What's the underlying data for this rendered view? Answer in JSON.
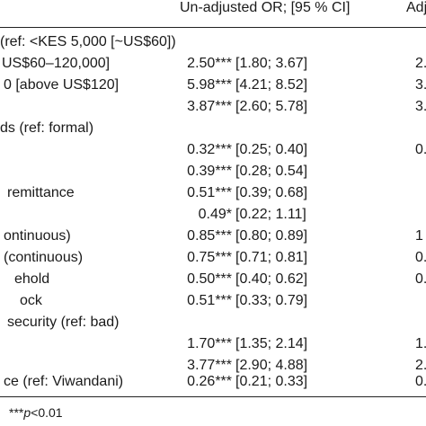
{
  "header": {
    "unadjusted": "Un-adjusted OR; [95 % CI]",
    "adjusted_fragment": "Adj"
  },
  "rows": [
    {
      "label": "(ref: <KES 5,000 [~US$60])",
      "or": "",
      "ci": "",
      "adj": ""
    },
    {
      "label": "US$60–120,000]",
      "or": "2.50***",
      "ci": "[1.80; 3.67]",
      "adj": "2."
    },
    {
      "label": "0 [above US$120]",
      "or": "5.98***",
      "ci": "[4.21; 8.52]",
      "adj": "3."
    },
    {
      "label": "",
      "or": "3.87***",
      "ci": "[2.60; 5.78]",
      "adj": "3."
    },
    {
      "label": "ds (ref: formal)",
      "or": "",
      "ci": "",
      "adj": ""
    },
    {
      "label": "",
      "or": "0.32***",
      "ci": "[0.25; 0.40]",
      "adj": "0."
    },
    {
      "label": "",
      "or": "0.39***",
      "ci": "[0.28; 0.54]",
      "adj": ""
    },
    {
      "label": "remittance",
      "or": "0.51***",
      "ci": "[0.39; 0.68]",
      "adj": ""
    },
    {
      "label": "",
      "or": "0.49*",
      "ci": "[0.22; 1.11]",
      "adj": ""
    },
    {
      "label": "ontinuous)",
      "or": "0.85***",
      "ci": "[0.80; 0.89]",
      "adj": "1"
    },
    {
      "label": "(continuous)",
      "or": "0.75***",
      "ci": "[0.71; 0.81]",
      "adj": "0."
    },
    {
      "label": "ehold",
      "or": "0.50***",
      "ci": "[0.40; 0.62]",
      "adj": "0."
    },
    {
      "label": "ock",
      "or": "0.51***",
      "ci": "[0.33; 0.79]",
      "adj": ""
    },
    {
      "label": "security (ref: bad)",
      "or": "",
      "ci": "",
      "adj": ""
    },
    {
      "label": "",
      "or": "1.70***",
      "ci": "[1.35; 2.14]",
      "adj": "1."
    },
    {
      "label": "",
      "or": "3.77***",
      "ci": "[2.90; 4.88]",
      "adj": "2."
    },
    {
      "label": "ce (ref: Viwandani)",
      "or": "0.26***",
      "ci": "[0.21; 0.33]",
      "adj": "0."
    }
  ],
  "footnote": {
    "stars": "***",
    "p_symbol": "p",
    "threshold": "<0.01"
  }
}
